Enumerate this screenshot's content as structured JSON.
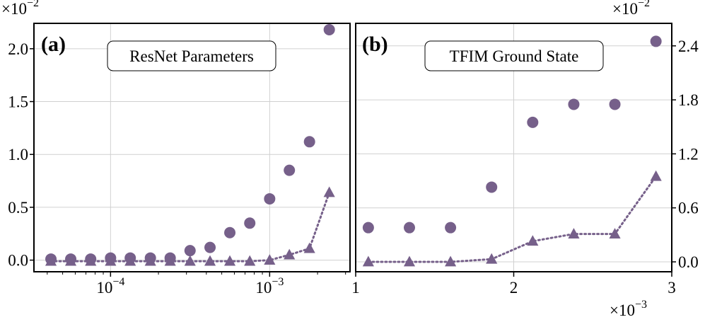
{
  "colors": {
    "marker": "#76608a",
    "grid": "#d0d0d0"
  },
  "chart_data": [
    {
      "type": "scatter",
      "panel_label": "(a)",
      "title": "ResNet Parameters",
      "x_scale": "log",
      "xlim": [
        3.3e-05,
        0.0032
      ],
      "x_ticks": [
        {
          "value": 0.0001,
          "base": "10",
          "exp": "−4"
        },
        {
          "value": 0.001,
          "base": "10",
          "exp": "−3"
        }
      ],
      "ylim": [
        -0.0011,
        0.0224
      ],
      "y_ticks": [
        {
          "value": 0.0,
          "label": "0.0"
        },
        {
          "value": 0.005,
          "label": "0.5"
        },
        {
          "value": 0.01,
          "label": "1.0"
        },
        {
          "value": 0.015,
          "label": "1.5"
        },
        {
          "value": 0.02,
          "label": "2.0"
        }
      ],
      "y_multiplier": {
        "base": "×10",
        "exp": "−2"
      },
      "x": [
        4.22e-05,
        5.62e-05,
        7.5e-05,
        0.0001,
        0.000133,
        0.000178,
        0.000237,
        0.000316,
        0.000422,
        0.000562,
        0.00075,
        0.001,
        0.00133,
        0.00178,
        0.00237
      ],
      "series": [
        {
          "name": "circles",
          "marker": "circle",
          "values": [
            0.0001,
            0.0001,
            0.0001,
            0.0002,
            0.0002,
            0.0002,
            0.0002,
            0.0009,
            0.0012,
            0.0026,
            0.0035,
            0.0058,
            0.0085,
            0.0112,
            0.0218
          ]
        },
        {
          "name": "triangles",
          "marker": "triangle",
          "line": "dotted",
          "values": [
            -0.0001,
            -0.0001,
            -0.0001,
            -0.0001,
            -0.0001,
            -0.0001,
            -0.0001,
            -0.0001,
            -0.0001,
            -0.0001,
            -0.0001,
            0.0,
            0.0005,
            0.0011,
            0.0064
          ]
        }
      ]
    },
    {
      "type": "scatter",
      "panel_label": "(b)",
      "title": "TFIM Ground State",
      "x_scale": "linear",
      "xlim": [
        0.001,
        0.003
      ],
      "x_ticks": [
        {
          "value": 0.001,
          "label": "1"
        },
        {
          "value": 0.002,
          "label": "2"
        },
        {
          "value": 0.003,
          "label": "3"
        }
      ],
      "x_multiplier": {
        "base": "×10",
        "exp": "−3"
      },
      "ylim": [
        -0.0011,
        0.0265
      ],
      "y_axis_side": "right",
      "y_ticks": [
        {
          "value": 0.0,
          "label": "0.0"
        },
        {
          "value": 0.006,
          "label": "0.6"
        },
        {
          "value": 0.012,
          "label": "1.2"
        },
        {
          "value": 0.018,
          "label": "1.8"
        },
        {
          "value": 0.024,
          "label": "2.4"
        }
      ],
      "y_multiplier": {
        "base": "×10",
        "exp": "−2"
      },
      "x": [
        0.00108,
        0.00134,
        0.0016,
        0.00186,
        0.00212,
        0.00238,
        0.00264,
        0.0029
      ],
      "series": [
        {
          "name": "circles",
          "marker": "circle",
          "values": [
            0.0038,
            0.0038,
            0.0038,
            0.0083,
            0.0155,
            0.0175,
            0.0175,
            0.0245
          ]
        },
        {
          "name": "triangles",
          "marker": "triangle",
          "line": "dotted",
          "values": [
            0.0,
            0.0,
            0.0,
            0.0003,
            0.0023,
            0.0031,
            0.0031,
            0.0095
          ]
        }
      ]
    }
  ]
}
